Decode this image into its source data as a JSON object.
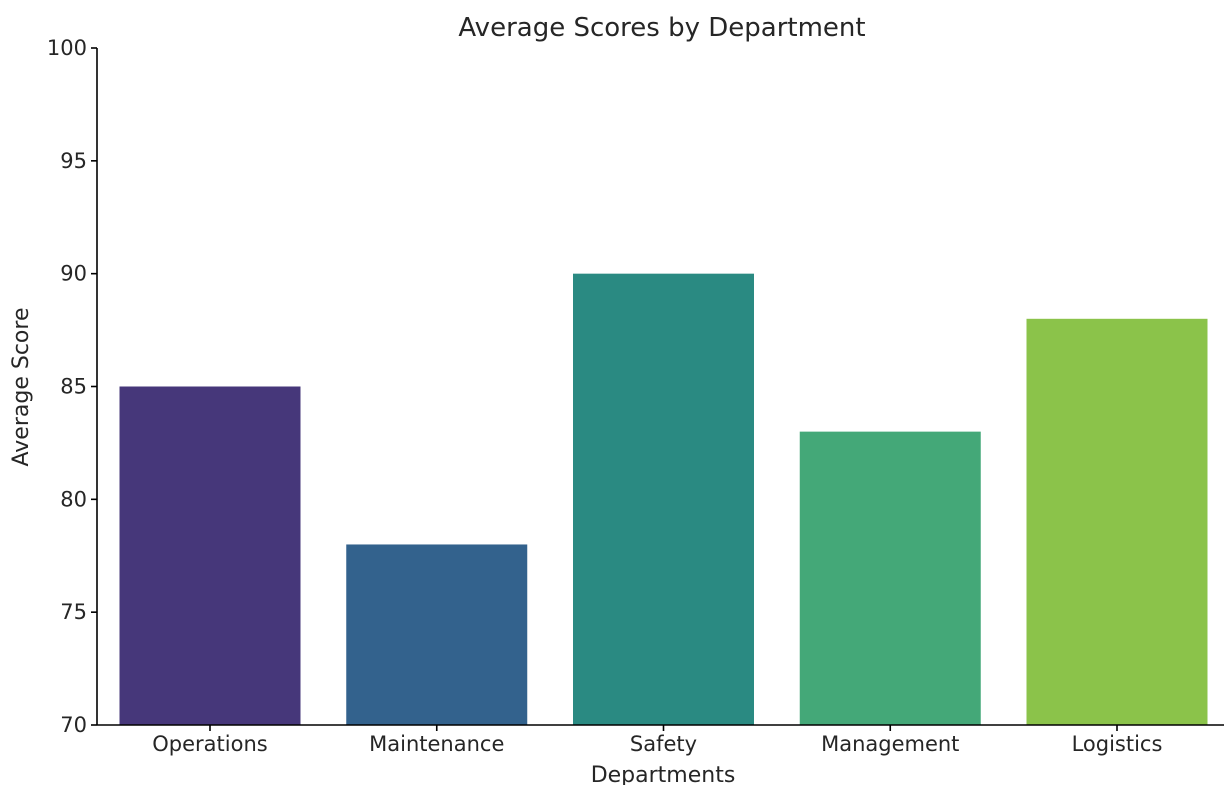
{
  "chart_data": {
    "type": "bar",
    "title": "Average Scores by Department",
    "xlabel": "Departments",
    "ylabel": "Average Score",
    "categories": [
      "Operations",
      "Maintenance",
      "Safety",
      "Management",
      "Logistics"
    ],
    "values": [
      85,
      78,
      90,
      83,
      88
    ],
    "colors": [
      "#46377a",
      "#33628d",
      "#2a8a82",
      "#44a878",
      "#8bc34a"
    ],
    "ylim": [
      70,
      100
    ],
    "yticks": [
      70,
      75,
      80,
      85,
      90,
      95,
      100
    ],
    "grid": false,
    "legend": "none"
  }
}
